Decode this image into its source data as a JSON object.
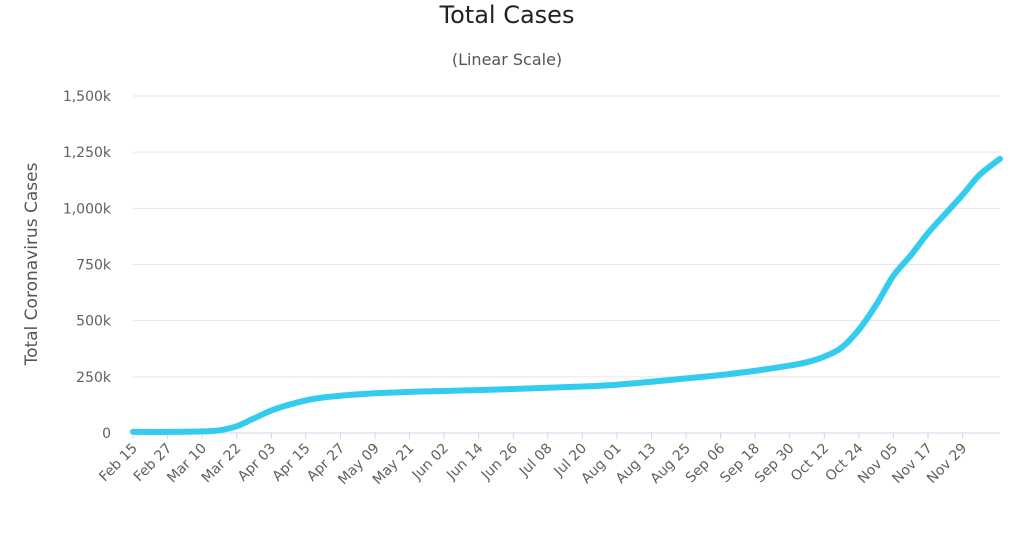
{
  "chart_data": {
    "type": "line",
    "title": "Total Cases",
    "subtitle": "(Linear Scale)",
    "ylabel": "Total Coronavirus Cases",
    "xlabel": "",
    "ylim": [
      0,
      1500000
    ],
    "grid": true,
    "legend": "none",
    "series_color": "#33ccee",
    "y_ticks": [
      {
        "value": 0,
        "label": "0"
      },
      {
        "value": 250000,
        "label": "250k"
      },
      {
        "value": 500000,
        "label": "500k"
      },
      {
        "value": 750000,
        "label": "750k"
      },
      {
        "value": 1000000,
        "label": "1,000k"
      },
      {
        "value": 1250000,
        "label": "1,250k"
      },
      {
        "value": 1500000,
        "label": "1,500k"
      }
    ],
    "x_tick_labels": [
      "Feb 15",
      "Feb 27",
      "Mar 10",
      "Mar 22",
      "Apr 03",
      "Apr 15",
      "Apr 27",
      "May 09",
      "May 21",
      "Jun 02",
      "Jun 14",
      "Jun 26",
      "Jul 08",
      "Jul 20",
      "Aug 01",
      "Aug 13",
      "Aug 25",
      "Sep 06",
      "Sep 18",
      "Sep 30",
      "Oct 12",
      "Oct 24",
      "Nov 05",
      "Nov 17",
      "Nov 29"
    ],
    "x_range": [
      "Feb 15",
      "Dec 12"
    ],
    "series": [
      {
        "x": [
          "Feb 15",
          "Feb 27",
          "Mar 10",
          "Mar 16",
          "Mar 22",
          "Mar 28",
          "Apr 03",
          "Apr 09",
          "Apr 15",
          "Apr 21",
          "Apr 27",
          "May 03",
          "May 09",
          "May 21",
          "Jun 02",
          "Jun 14",
          "Jun 26",
          "Jul 08",
          "Jul 20",
          "Aug 01",
          "Aug 13",
          "Aug 25",
          "Sep 06",
          "Sep 18",
          "Sep 30",
          "Oct 06",
          "Oct 12",
          "Oct 18",
          "Oct 24",
          "Oct 30",
          "Nov 05",
          "Nov 11",
          "Nov 17",
          "Nov 23",
          "Nov 29",
          "Dec 05",
          "Dec 12"
        ],
        "values": [
          5000,
          5000,
          7000,
          12000,
          30000,
          65000,
          100000,
          125000,
          145000,
          158000,
          166000,
          172000,
          177000,
          183000,
          187000,
          191000,
          196000,
          201000,
          207000,
          215000,
          228000,
          243000,
          258000,
          277000,
          300000,
          315000,
          340000,
          380000,
          460000,
          570000,
          700000,
          790000,
          890000,
          975000,
          1060000,
          1150000,
          1220000
        ]
      }
    ]
  }
}
